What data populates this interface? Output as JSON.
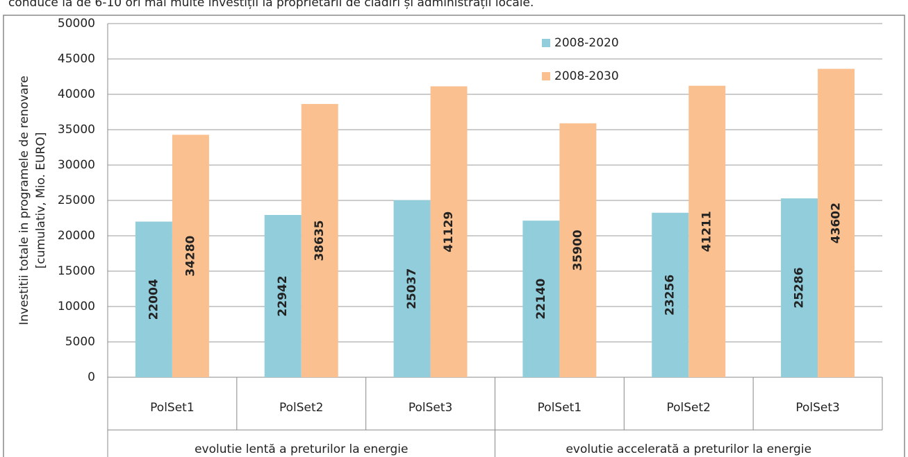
{
  "caption": "conduce la de 6-10 ori mai multe investiții la proprietarii de clădiri și administrații locale.",
  "chart_data": {
    "type": "bar",
    "y_label": [
      "Investitii totale in programele de renovare",
      "[cumulativ, Mio. EURO]"
    ],
    "categories": [
      "PolSet1",
      "PolSet2",
      "PolSet3",
      "PolSet1",
      "PolSet2",
      "PolSet3"
    ],
    "groups": [
      "evolutie lentă a preturilor la energie",
      "evolutie accelerată a preturilor la energie"
    ],
    "series": [
      {
        "name": "2008-2020",
        "color": "#92cddc",
        "values": [
          22004,
          22942,
          25037,
          22140,
          23256,
          25286
        ]
      },
      {
        "name": "2008-2030",
        "color": "#fac090",
        "values": [
          34280,
          38635,
          41129,
          35900,
          41211,
          43602
        ]
      }
    ],
    "ylim": [
      0,
      50000
    ],
    "yticks": [
      0,
      5000,
      10000,
      15000,
      20000,
      25000,
      30000,
      35000,
      40000,
      45000,
      50000
    ],
    "grid": true,
    "legend": "top"
  }
}
